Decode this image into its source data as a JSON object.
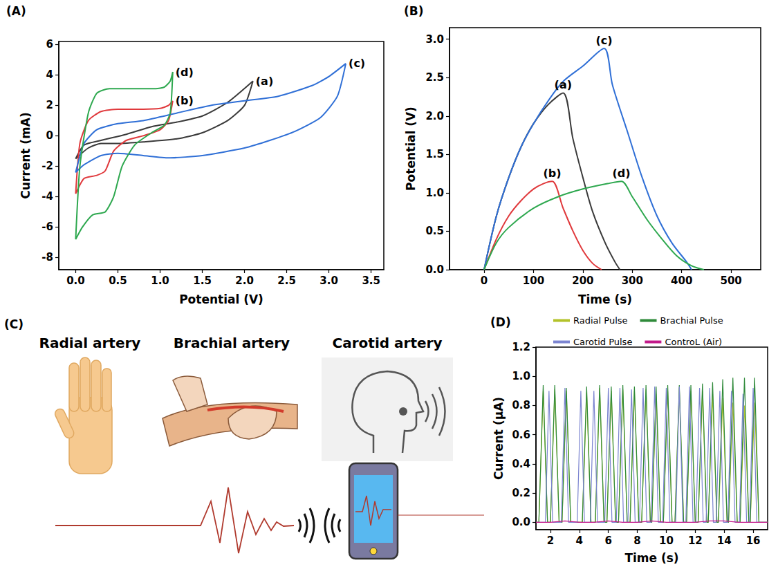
{
  "chart_data": [
    {
      "panel_label": "(A)",
      "type": "line",
      "x_label": "Potential (V)",
      "y_label": "Current (mA)",
      "grid": false,
      "xlim": [
        -0.2,
        3.65
      ],
      "xticks": [
        {
          "value": 0,
          "label": "0.0"
        },
        {
          "value": 0.5,
          "label": "0.5"
        },
        {
          "value": 1,
          "label": "1.0"
        },
        {
          "value": 1.5,
          "label": "1.5"
        },
        {
          "value": 2,
          "label": "2.0"
        },
        {
          "value": 2.5,
          "label": "2.5"
        },
        {
          "value": 3,
          "label": "3.0"
        },
        {
          "value": 3.5,
          "label": "3.5"
        }
      ],
      "ylim": [
        -8.8,
        6.2
      ],
      "yticks": [
        -8,
        -6,
        -4,
        -2,
        0,
        2,
        4,
        6
      ],
      "series": [
        {
          "name": "(a)",
          "color": "#3a3a3a",
          "x": [
            2.1,
            2.0,
            1.8,
            1.5,
            1.2,
            0.8,
            0.5,
            0.3,
            0.15,
            0,
            0.1,
            0.3,
            0.6,
            0.9,
            1.2,
            1.5,
            1.8,
            2.1
          ],
          "values": [
            3.6,
            2.0,
            1.0,
            0.2,
            -0.2,
            -0.4,
            -0.5,
            -0.5,
            -0.8,
            -1.5,
            -0.6,
            -0.3,
            0.1,
            0.6,
            0.9,
            1.3,
            2.2,
            3.6
          ]
        },
        {
          "name": "(b)",
          "color": "#e0393c",
          "x": [
            1.15,
            1.1,
            1.0,
            0.8,
            0.6,
            0.45,
            0.35,
            0.25,
            0.1,
            0,
            0.05,
            0.15,
            0.3,
            0.5,
            0.8,
            1.0,
            1.1,
            1.15
          ],
          "values": [
            2.3,
            1.0,
            0.4,
            0.0,
            -0.3,
            -1.0,
            -2.3,
            -2.6,
            -2.8,
            -3.8,
            -0.5,
            1.0,
            1.6,
            1.75,
            1.75,
            1.8,
            2.0,
            2.3
          ]
        },
        {
          "name": "(c)",
          "color": "#2f6fd6",
          "x": [
            3.2,
            3.1,
            2.9,
            2.6,
            2.3,
            2.0,
            1.5,
            1.1,
            0.8,
            0.5,
            0.3,
            0.1,
            0,
            0.1,
            0.25,
            0.5,
            0.8,
            1.2,
            1.6,
            2.0,
            2.4,
            2.8,
            3.0,
            3.2
          ],
          "values": [
            4.75,
            2.6,
            1.2,
            0.3,
            -0.3,
            -0.8,
            -1.3,
            -1.45,
            -1.3,
            -1.15,
            -1.3,
            -1.9,
            -2.4,
            -0.5,
            0.4,
            0.8,
            1.0,
            1.5,
            2.0,
            2.3,
            2.6,
            3.3,
            3.9,
            4.75
          ]
        },
        {
          "name": "(d)",
          "color": "#2ea84f",
          "x": [
            1.15,
            1.12,
            1.05,
            0.9,
            0.7,
            0.55,
            0.45,
            0.35,
            0.2,
            0.08,
            0,
            0.05,
            0.15,
            0.25,
            0.4,
            0.7,
            0.95,
            1.05,
            1.12,
            1.15
          ],
          "values": [
            4.2,
            1.5,
            0.7,
            0.2,
            -0.6,
            -2.0,
            -4.0,
            -5.0,
            -5.2,
            -6.0,
            -6.8,
            -2.0,
            1.5,
            2.8,
            3.1,
            3.1,
            3.1,
            3.2,
            3.6,
            4.2
          ]
        }
      ]
    },
    {
      "panel_label": "(B)",
      "type": "line",
      "x_label": "Time (s)",
      "y_label": "Potential (V)",
      "grid": false,
      "xlim": [
        -70,
        560
      ],
      "xticks": [
        0,
        100,
        200,
        300,
        400,
        500
      ],
      "ylim": [
        0,
        3.15
      ],
      "yticks": [
        {
          "value": 0,
          "label": "0.0"
        },
        {
          "value": 0.5,
          "label": "0.5"
        },
        {
          "value": 1,
          "label": "1.0"
        },
        {
          "value": 1.5,
          "label": "1.5"
        },
        {
          "value": 2,
          "label": "2.0"
        },
        {
          "value": 2.5,
          "label": "2.5"
        },
        {
          "value": 3,
          "label": "3.0"
        }
      ],
      "series": [
        {
          "name": "(a)",
          "color": "#3a3a3a",
          "x": [
            0,
            25,
            50,
            75,
            100,
            130,
            160,
            180,
            200,
            220,
            245,
            265,
            275
          ],
          "values": [
            0,
            0.7,
            1.2,
            1.6,
            1.9,
            2.15,
            2.3,
            1.7,
            1.2,
            0.75,
            0.35,
            0.1,
            0
          ]
        },
        {
          "name": "(b)",
          "color": "#e0393c",
          "x": [
            0,
            25,
            50,
            75,
            100,
            120,
            138,
            160,
            180,
            200,
            220,
            238
          ],
          "values": [
            0,
            0.4,
            0.7,
            0.9,
            1.05,
            1.12,
            1.15,
            0.8,
            0.5,
            0.25,
            0.08,
            0
          ]
        },
        {
          "name": "(c)",
          "color": "#2f6fd6",
          "x": [
            0,
            25,
            50,
            75,
            100,
            130,
            160,
            200,
            243,
            260,
            290,
            320,
            350,
            380,
            410,
            420
          ],
          "values": [
            0,
            0.7,
            1.2,
            1.6,
            1.9,
            2.2,
            2.45,
            2.65,
            2.88,
            2.4,
            1.8,
            1.2,
            0.7,
            0.35,
            0.1,
            0
          ]
        },
        {
          "name": "(d)",
          "color": "#2ea84f",
          "x": [
            0,
            25,
            50,
            100,
            150,
            200,
            250,
            278,
            300,
            330,
            360,
            390,
            420,
            445
          ],
          "values": [
            0,
            0.35,
            0.55,
            0.8,
            0.95,
            1.05,
            1.12,
            1.15,
            0.95,
            0.65,
            0.4,
            0.18,
            0.05,
            0
          ]
        }
      ]
    },
    {
      "panel_label": "(D)",
      "type": "line",
      "x_label": "Time (s)",
      "y_label": "Current (μA)",
      "grid": false,
      "legend": "top",
      "xlim": [
        1,
        17
      ],
      "xticks": [
        2,
        4,
        6,
        8,
        10,
        12,
        14,
        16
      ],
      "ylim": [
        -0.05,
        1.2
      ],
      "yticks": [
        {
          "value": 0,
          "label": "0.0"
        },
        {
          "value": 0.2,
          "label": "0.2"
        },
        {
          "value": 0.4,
          "label": "0.4"
        },
        {
          "value": 0.6,
          "label": "0.6"
        },
        {
          "value": 0.8,
          "label": "0.8"
        },
        {
          "value": 1,
          "label": "1.0"
        },
        {
          "value": 1.2,
          "label": "1.2"
        }
      ],
      "series": [
        {
          "name": "Radial Pulse",
          "color": "#b3c22a",
          "x": [
            1.0,
            1.2,
            1.5,
            1.8,
            2.0,
            2.3,
            2.6,
            2.8,
            3.1,
            3.4,
            4.2,
            4.5,
            4.8,
            5.1,
            5.4,
            5.7,
            5.9,
            6.2,
            6.5,
            6.7,
            7.0,
            7.3,
            7.5,
            7.8,
            8.1,
            8.3,
            8.6,
            8.9,
            9.0,
            9.3,
            9.6,
            9.8,
            10.1,
            10.4,
            10.6,
            10.9,
            11.2,
            11.4,
            11.7,
            12.0,
            12.2,
            12.5,
            12.8,
            12.9,
            13.2,
            13.5,
            13.6,
            13.9,
            14.2,
            14.3,
            14.6,
            14.9,
            15.1,
            15.4,
            15.7,
            15.8,
            16.1,
            16.4,
            17.0
          ],
          "values": [
            0,
            0,
            0.9,
            0,
            0,
            0.91,
            0,
            0,
            0.9,
            0,
            0,
            0.89,
            0,
            0,
            0.92,
            0,
            0,
            0.9,
            0,
            0,
            0.91,
            0,
            0,
            0.9,
            0,
            0,
            0.91,
            0,
            0,
            0.88,
            0,
            0,
            0.9,
            0,
            0,
            0.92,
            0,
            0,
            0.9,
            0,
            0,
            0.9,
            0,
            0,
            0.88,
            0,
            0,
            0.85,
            0,
            0,
            0.82,
            0,
            0,
            0.8,
            0,
            0,
            0.82,
            0,
            0
          ]
        },
        {
          "name": "Brachial Pulse",
          "color": "#2f8a3a",
          "x": [
            1.0,
            1.2,
            1.5,
            1.8,
            2.0,
            2.3,
            2.6,
            2.8,
            3.1,
            3.4,
            4.2,
            4.5,
            4.8,
            5.1,
            5.4,
            5.7,
            5.9,
            6.2,
            6.5,
            6.7,
            7.0,
            7.3,
            7.5,
            7.8,
            8.1,
            8.3,
            8.6,
            8.9,
            9.0,
            9.3,
            9.6,
            9.8,
            10.1,
            10.4,
            10.6,
            10.9,
            11.2,
            11.4,
            11.7,
            12.0,
            12.2,
            12.5,
            12.8,
            12.9,
            13.2,
            13.5,
            13.6,
            13.9,
            14.2,
            14.3,
            14.6,
            14.9,
            15.1,
            15.4,
            15.7,
            15.8,
            16.1,
            16.4,
            17.0
          ],
          "values": [
            0,
            0,
            0.94,
            0,
            0,
            0.94,
            0,
            0,
            0.92,
            0,
            0,
            0.93,
            0,
            0,
            0.94,
            0,
            0,
            0.93,
            0,
            0,
            0.94,
            0,
            0,
            0.93,
            0,
            0,
            0.94,
            0,
            0,
            0.93,
            0,
            0,
            0.94,
            0,
            0,
            0.94,
            0,
            0,
            0.94,
            0,
            0,
            0.95,
            0,
            0,
            0.96,
            0,
            0,
            0.98,
            0,
            0,
            0.99,
            0,
            0,
            0.99,
            0,
            0,
            0.99,
            0,
            0
          ]
        },
        {
          "name": "Carotid Pulse",
          "color": "#7b84d0",
          "x": [
            1.0,
            1.65,
            1.9,
            2.15,
            2.75,
            3.0,
            3.25,
            3.85,
            4.1,
            4.35,
            4.75,
            5.0,
            5.25,
            5.75,
            6.0,
            6.25,
            6.55,
            6.8,
            7.05,
            7.35,
            7.6,
            7.85,
            8.15,
            8.4,
            8.65,
            8.95,
            9.2,
            9.45,
            9.75,
            10.0,
            10.25,
            10.65,
            10.9,
            11.15,
            11.35,
            11.6,
            11.85,
            12.05,
            12.3,
            12.55,
            12.75,
            13.0,
            13.25,
            13.45,
            13.7,
            13.95,
            14.25,
            14.5,
            14.75,
            15.05,
            15.3,
            15.55,
            15.75,
            16.0,
            16.25,
            17.0
          ],
          "values": [
            0,
            0,
            0.9,
            0,
            0,
            0.92,
            0,
            0,
            0.9,
            0,
            0,
            0.9,
            0,
            0,
            0.92,
            0,
            0,
            0.92,
            0,
            0,
            0.91,
            0,
            0,
            0.92,
            0,
            0,
            0.93,
            0,
            0,
            0.92,
            0,
            0,
            0.93,
            0,
            0,
            0.93,
            0,
            0,
            0.92,
            0,
            0,
            0.92,
            0,
            0,
            0.9,
            0,
            0,
            0.9,
            0,
            0,
            0.88,
            0,
            0,
            0.92,
            0,
            0
          ]
        },
        {
          "name": "ControL (Air)",
          "color": "#c21a8a",
          "x": [
            1,
            2,
            3,
            4,
            5,
            6,
            7,
            8,
            9,
            10,
            11,
            12,
            13,
            14,
            15,
            16,
            17
          ],
          "values": [
            0,
            0,
            0.01,
            0,
            0,
            0.01,
            0,
            0,
            0.01,
            0,
            0,
            0,
            0.01,
            0.01,
            0,
            0,
            0
          ]
        }
      ]
    }
  ],
  "diagram": {
    "panel_label": "(C)",
    "labels": [
      "Radial artery",
      "Brachial artery",
      "Carotid artery"
    ]
  }
}
